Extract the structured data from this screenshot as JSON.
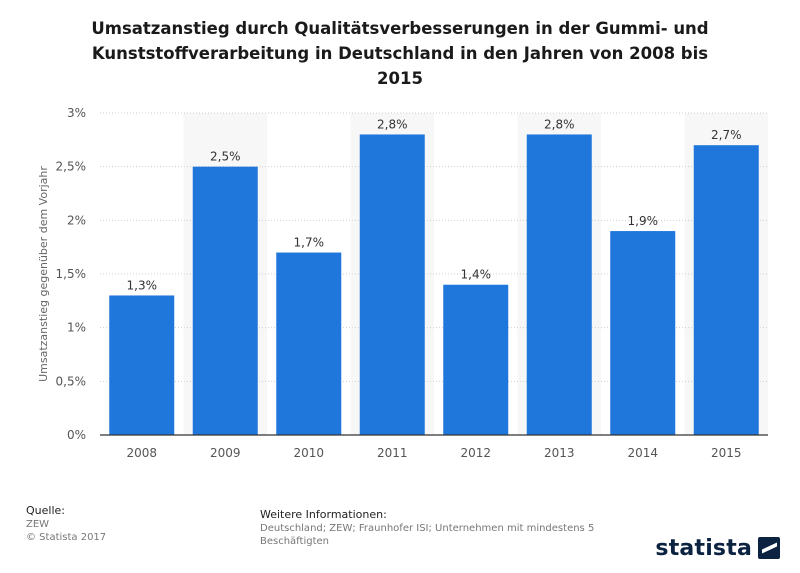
{
  "chart_data": {
    "type": "bar",
    "title": "Umsatzanstieg durch Qualitätsverbesserungen in der Gummi- und Kunststoffverarbeitung in Deutschland in den Jahren von 2008 bis 2015",
    "title_lines": [
      "Umsatzanstieg durch Qualitätsverbesserungen in der Gummi- und",
      "Kunststoffverarbeitung in Deutschland in den Jahren von 2008 bis",
      "2015"
    ],
    "categories": [
      "2008",
      "2009",
      "2010",
      "2011",
      "2012",
      "2013",
      "2014",
      "2015"
    ],
    "values": [
      1.3,
      2.5,
      1.7,
      2.8,
      1.4,
      2.8,
      1.9,
      2.7
    ],
    "value_labels": [
      "1,3%",
      "2,5%",
      "1,7%",
      "2,8%",
      "1,4%",
      "2,8%",
      "1,9%",
      "2,7%"
    ],
    "xlabel": "",
    "ylabel": "Umsatzanstieg gegenüber dem Vorjahr",
    "ylim": [
      0,
      3
    ],
    "yticks": [
      0,
      0.5,
      1,
      1.5,
      2,
      2.5,
      3
    ],
    "ytick_labels": [
      "0%",
      "0,5%",
      "1%",
      "1,5%",
      "2%",
      "2,5%",
      "3%"
    ],
    "bar_color": "#1f77dc",
    "band_color": "#f7f7f7"
  },
  "footer": {
    "source_heading": "Quelle:",
    "source": "ZEW",
    "copyright": "© Statista 2017",
    "info_heading": "Weitere Informationen:",
    "info_line1": "Deutschland; ZEW; Fraunhofer ISI; Unternehmen mit mindestens 5",
    "info_line2": "Beschäftigten"
  },
  "brand": {
    "name": "statista"
  }
}
